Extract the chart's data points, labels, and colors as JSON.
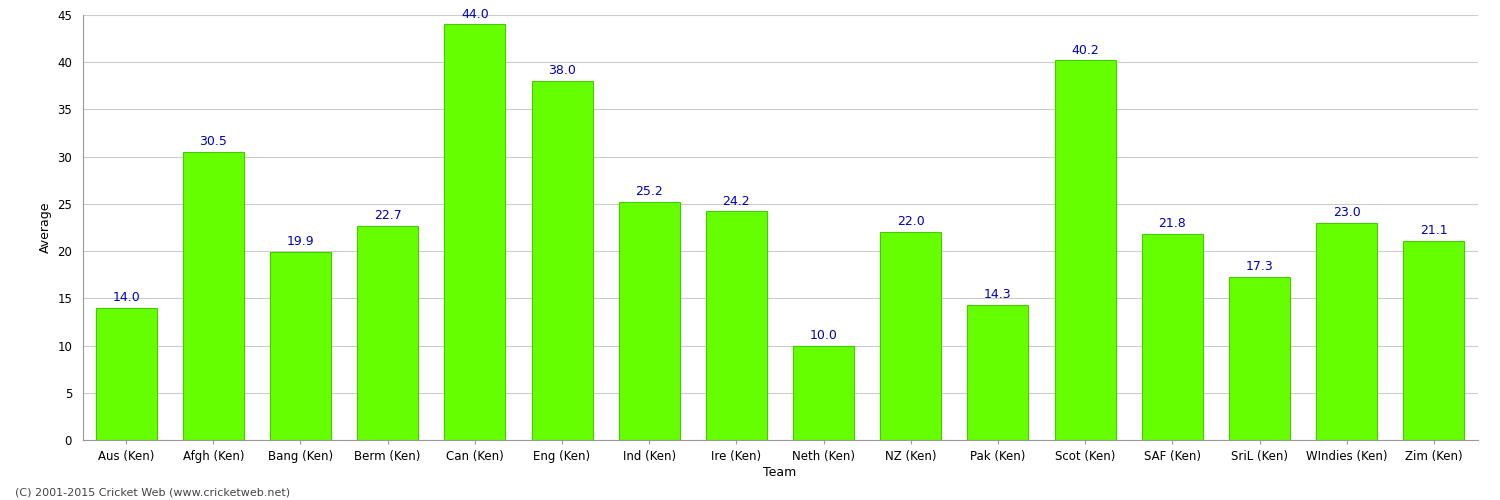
{
  "categories": [
    "Aus (Ken)",
    "Afgh (Ken)",
    "Bang (Ken)",
    "Berm (Ken)",
    "Can (Ken)",
    "Eng (Ken)",
    "Ind (Ken)",
    "Ire (Ken)",
    "Neth (Ken)",
    "NZ (Ken)",
    "Pak (Ken)",
    "Scot (Ken)",
    "SAF (Ken)",
    "SriL (Ken)",
    "WIndies (Ken)",
    "Zim (Ken)"
  ],
  "values": [
    14.0,
    30.5,
    19.9,
    22.7,
    44.0,
    38.0,
    25.2,
    24.2,
    10.0,
    22.0,
    14.3,
    40.2,
    21.8,
    17.3,
    23.0,
    21.1
  ],
  "bar_color": "#66ff00",
  "bar_edge_color": "#44cc00",
  "label_color": "#0000bb",
  "xlabel": "Team",
  "ylabel": "Average",
  "ylim": [
    0,
    45
  ],
  "yticks": [
    0,
    5,
    10,
    15,
    20,
    25,
    30,
    35,
    40,
    45
  ],
  "grid_color": "#cccccc",
  "background_color": "#ffffff",
  "footer": "(C) 2001-2015 Cricket Web (www.cricketweb.net)",
  "label_fontsize": 9,
  "axis_fontsize": 8.5,
  "footer_fontsize": 8
}
